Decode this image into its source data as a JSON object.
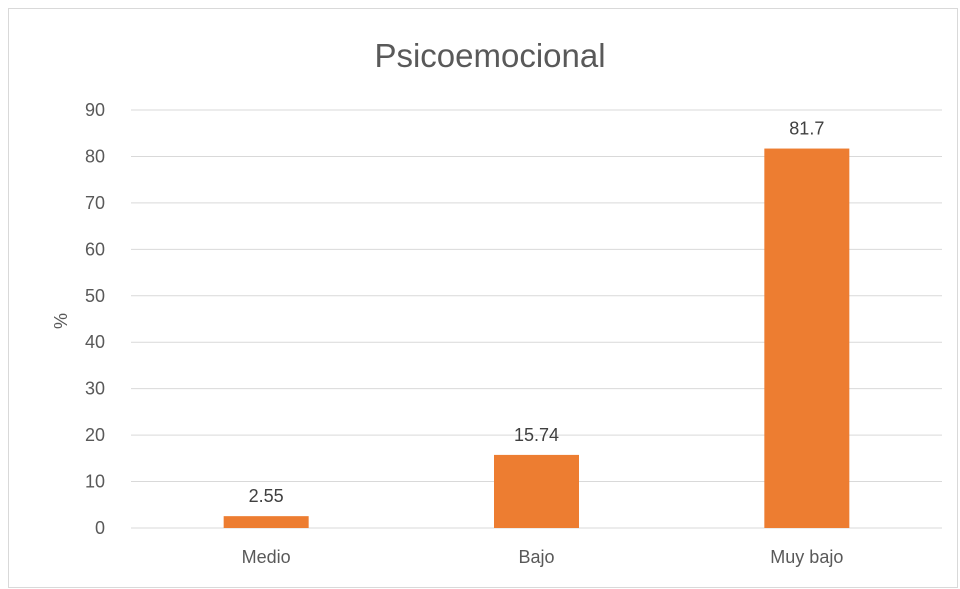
{
  "chart_data": {
    "type": "bar",
    "title": "Psicoemocional",
    "xlabel": "",
    "ylabel": "%",
    "categories": [
      "Medio",
      "Bajo",
      "Muy bajo"
    ],
    "values": [
      2.55,
      15.74,
      81.7
    ],
    "data_labels": [
      "2.55",
      "15.74",
      "81.7"
    ],
    "ylim": [
      0,
      90
    ],
    "yticks": [
      0,
      10,
      20,
      30,
      40,
      50,
      60,
      70,
      80,
      90
    ],
    "grid": true,
    "legend": "none",
    "bar_color": "#ED7D31"
  }
}
